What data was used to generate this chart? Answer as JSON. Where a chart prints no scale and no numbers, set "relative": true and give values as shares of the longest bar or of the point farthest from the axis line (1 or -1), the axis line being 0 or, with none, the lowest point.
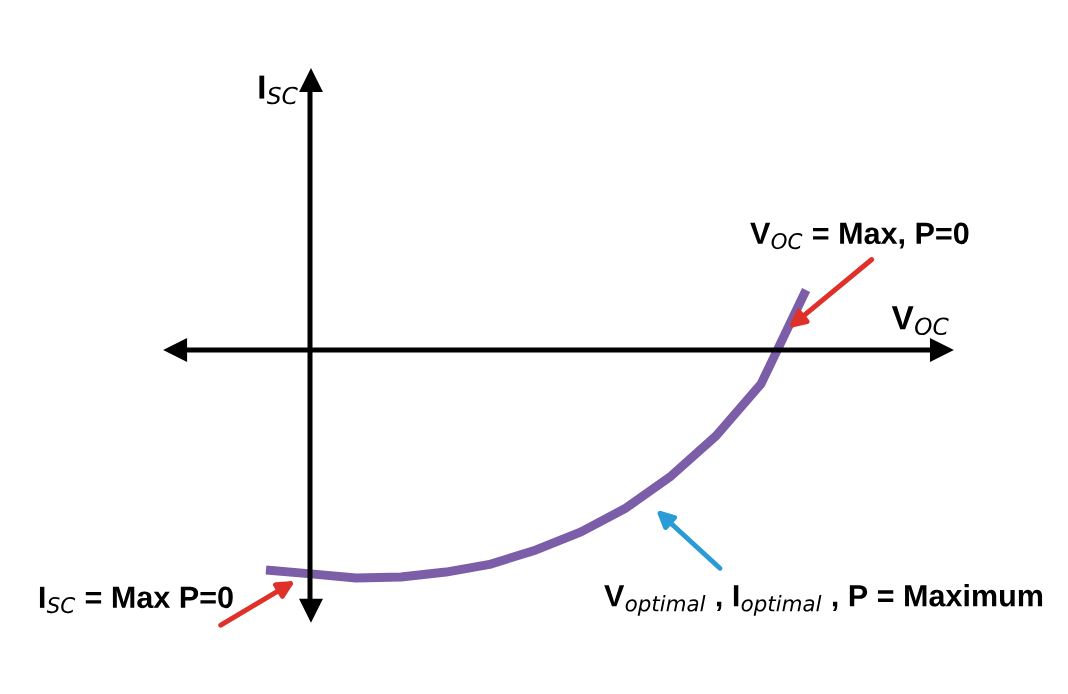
{
  "chart_data": {
    "type": "line",
    "relative": true,
    "xlabel": "V$_{OC}$",
    "categories": [
      null,
      null,
      null,
      null,
      null,
      null,
      null,
      null,
      null,
      null,
      null,
      null,
      null
    ],
    "series": [
      {
        "color": "#7b5ea7",
        "values": [
          -0.965,
          -0.982,
          -1,
          -0.996,
          -0.974,
          -0.939,
          -0.877,
          -0.798,
          -0.693,
          -0.553,
          -0.377,
          -0.149,
          0.263
        ]
      }
    ],
    "annotations": [
      "V$_{OC}$ = Max, P=0",
      "I$_{SC}$ = Max P=0",
      "V$_{optimal}$ , I$_{optimal}$ , P = Maximum",
      "I$_{SC}$"
    ]
  }
}
